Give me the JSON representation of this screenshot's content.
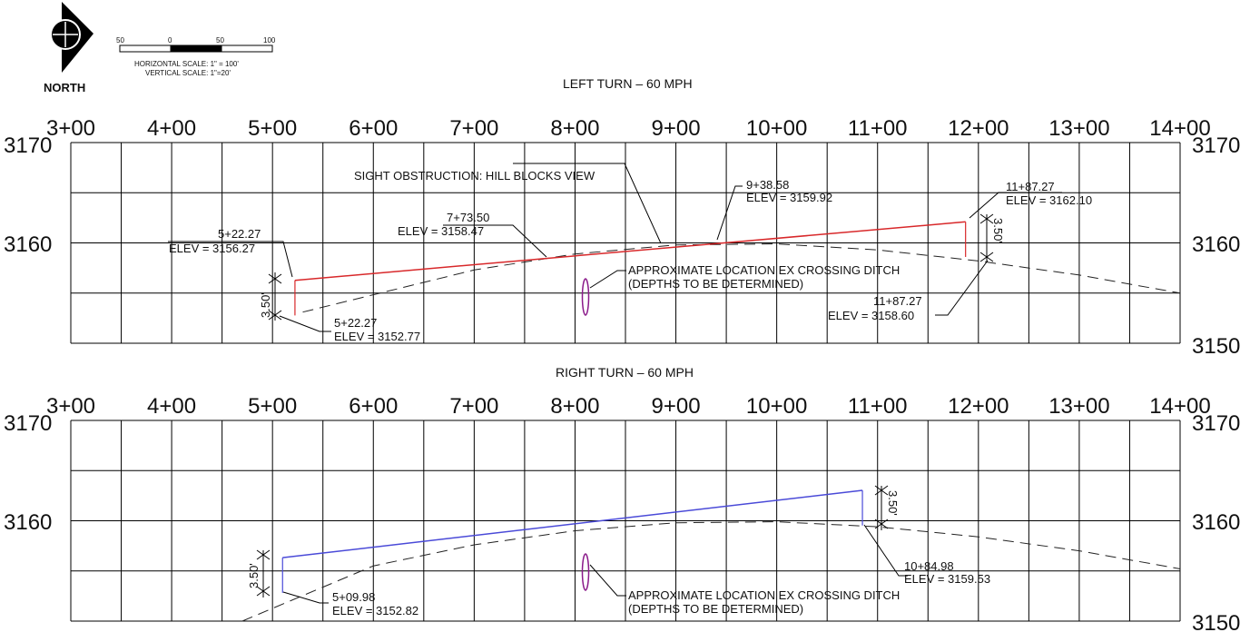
{
  "north": {
    "label": "NORTH"
  },
  "scale_bar": {
    "ticks": [
      "50",
      "0",
      "50",
      "100"
    ],
    "horizontal": "HORIZONTAL SCALE:  1\" = 100'",
    "vertical": "VERTICAL SCALE:  1\"=20'"
  },
  "profiles": [
    {
      "title": "LEFT TURN – 60 MPH",
      "stations": [
        "3+00",
        "4+00",
        "5+00",
        "6+00",
        "7+00",
        "8+00",
        "9+00",
        "10+00",
        "11+00",
        "12+00",
        "13+00",
        "14+00"
      ],
      "elev_top": "3170",
      "elev_mid": "3160",
      "elev_bot": "3150",
      "sight_color": "#d8282a",
      "sight_line": [
        {
          "sta": 522.27,
          "elev": 3156.27
        },
        {
          "sta": 1187.27,
          "elev": 3162.1
        }
      ],
      "ground": [
        {
          "sta": 530,
          "elev": 3153.1
        },
        {
          "sta": 700,
          "elev": 3157.3
        },
        {
          "sta": 800,
          "elev": 3158.9
        },
        {
          "sta": 900,
          "elev": 3159.8
        },
        {
          "sta": 1000,
          "elev": 3159.9
        },
        {
          "sta": 1100,
          "elev": 3159.3
        },
        {
          "sta": 1200,
          "elev": 3158.2
        },
        {
          "sta": 1300,
          "elev": 3156.8
        },
        {
          "sta": 1400,
          "elev": 3155.0
        }
      ],
      "ground_start_label": {
        "sta": 522.27,
        "elev": 3152.77
      },
      "ground_end_label": {
        "sta": 1187.27,
        "elev": 3158.6
      },
      "dim_left": "3.50'",
      "dim_right": "3.50'",
      "labels": {
        "left_top_sta": "5+22.27",
        "left_top_elev": "ELEV = 3156.27",
        "left_bot_sta": "5+22.27",
        "left_bot_elev": "ELEV = 3152.77",
        "mid_sta": "7+73.50",
        "mid_elev": "ELEV = 3158.47",
        "obstruction": "SIGHT OBSTRUCTION: HILL BLOCKS VIEW",
        "peak_sta": "9+38.58",
        "peak_elev": "ELEV = 3159.92",
        "right_top_sta": "11+87.27",
        "right_top_elev": "ELEV = 3162.10",
        "right_bot_sta": "11+87.27",
        "right_bot_elev": "ELEV = 3158.60",
        "ditch_line1": "APPROXIMATE LOCATION EX CROSSING DITCH",
        "ditch_line2": "(DEPTHS TO BE DETERMINED)"
      }
    },
    {
      "title": "RIGHT TURN – 60 MPH",
      "stations": [
        "3+00",
        "4+00",
        "5+00",
        "6+00",
        "7+00",
        "8+00",
        "9+00",
        "10+00",
        "11+00",
        "12+00",
        "13+00",
        "14+00"
      ],
      "elev_top": "3170",
      "elev_mid": "3160",
      "elev_bot": "3150",
      "sight_color": "#4a4ad8",
      "sight_line": [
        {
          "sta": 509.98,
          "elev": 3156.32
        },
        {
          "sta": 1084.98,
          "elev": 3163.03
        }
      ],
      "ground": [
        {
          "sta": 470,
          "elev": 3150.0
        },
        {
          "sta": 600,
          "elev": 3155.5
        },
        {
          "sta": 700,
          "elev": 3157.6
        },
        {
          "sta": 800,
          "elev": 3159.0
        },
        {
          "sta": 900,
          "elev": 3159.8
        },
        {
          "sta": 1000,
          "elev": 3159.9
        },
        {
          "sta": 1100,
          "elev": 3159.4
        },
        {
          "sta": 1200,
          "elev": 3158.4
        },
        {
          "sta": 1300,
          "elev": 3157.0
        },
        {
          "sta": 1400,
          "elev": 3155.2
        }
      ],
      "ground_start_label": {
        "sta": 509.98,
        "elev": 3152.82
      },
      "ground_end_label": {
        "sta": 1084.98,
        "elev": 3159.53
      },
      "dim_left": "3.50'",
      "dim_right": "3.50'",
      "labels": {
        "left_bot_sta": "5+09.98",
        "left_bot_elev": "ELEV = 3152.82",
        "right_bot_sta": "10+84.98",
        "right_bot_elev": "ELEV = 3159.53",
        "ditch_line1": "APPROXIMATE LOCATION EX CROSSING DITCH",
        "ditch_line2": "(DEPTHS TO BE DETERMINED)"
      }
    }
  ]
}
